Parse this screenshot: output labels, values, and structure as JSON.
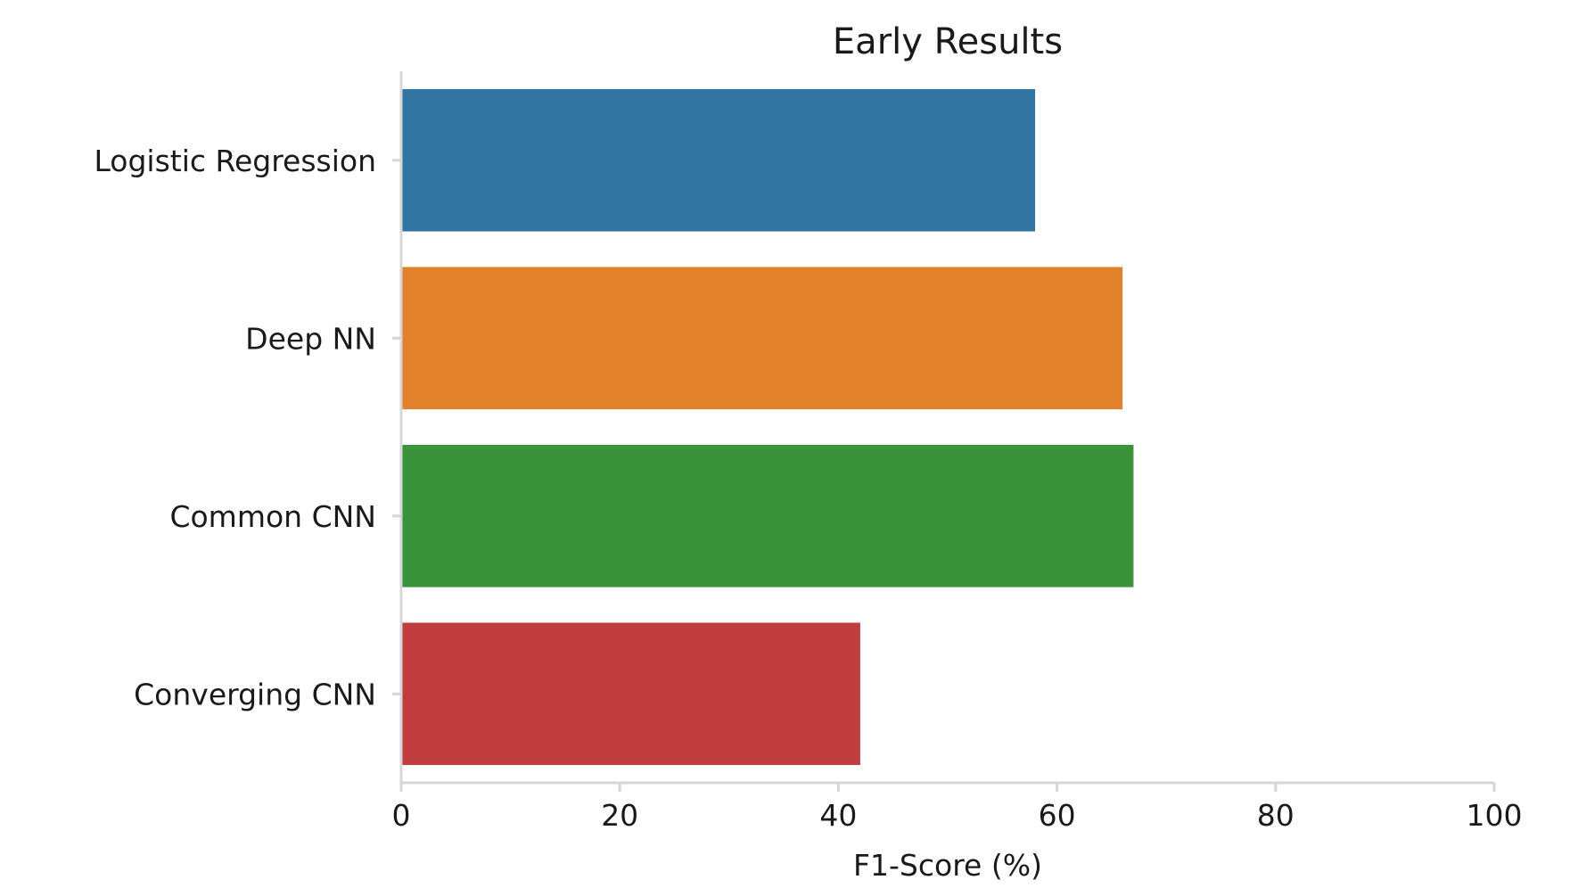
{
  "chart_data": {
    "type": "bar",
    "orientation": "horizontal",
    "title": "Early Results",
    "xlabel": "F1-Score (%)",
    "ylabel": "",
    "categories": [
      "Logistic Regression",
      "Deep NN",
      "Common CNN",
      "Converging CNN"
    ],
    "values": [
      58,
      66,
      67,
      42
    ],
    "colors": [
      "#3274a1",
      "#e1812c",
      "#3a923a",
      "#c03d3e"
    ],
    "xlim": [
      0,
      100
    ],
    "xticks": [
      0,
      20,
      40,
      60,
      80,
      100
    ],
    "grid": false,
    "legend": "none"
  }
}
